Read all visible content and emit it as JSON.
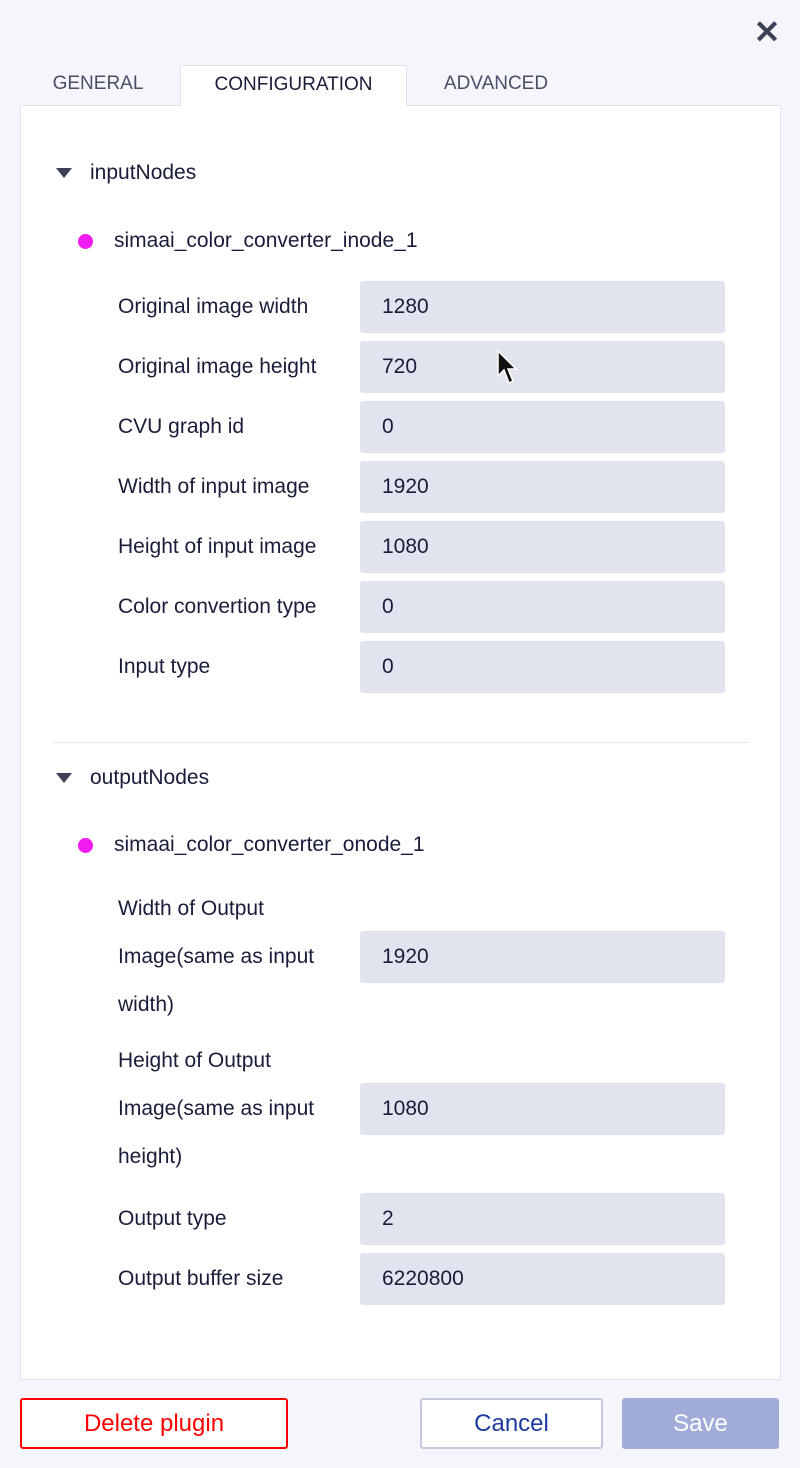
{
  "tabs": [
    {
      "label": "GENERAL",
      "active": false
    },
    {
      "label": "CONFIGURATION",
      "active": true
    },
    {
      "label": "ADVANCED",
      "active": false
    }
  ],
  "input_section": {
    "title": "inputNodes",
    "node": "simaai_color_converter_inode_1",
    "fields": [
      {
        "label": "Original image width",
        "value": "1280"
      },
      {
        "label": "Original image height",
        "value": "720"
      },
      {
        "label": "CVU graph id",
        "value": "0"
      },
      {
        "label": "Width of input image",
        "value": "1920"
      },
      {
        "label": "Height of input image",
        "value": "1080"
      },
      {
        "label": "Color convertion type",
        "value": "0"
      },
      {
        "label": "Input type",
        "value": "0"
      }
    ]
  },
  "output_section": {
    "title": "outputNodes",
    "node": "simaai_color_converter_onode_1",
    "fields": [
      {
        "label": "Width of Output Image(same as input width)",
        "value": "1920"
      },
      {
        "label": "Height of Output Image(same as input height)",
        "value": "1080"
      },
      {
        "label": "Output type",
        "value": "2"
      },
      {
        "label": "Output buffer size",
        "value": "6220800"
      }
    ]
  },
  "footer": {
    "delete_label": "Delete plugin",
    "cancel_label": "Cancel",
    "save_label": "Save"
  },
  "colors": {
    "node_dot": "#f01bf0",
    "delete": "#ff0000",
    "cancel": "#1f3aa0",
    "save_bg": "#a2acd8"
  }
}
